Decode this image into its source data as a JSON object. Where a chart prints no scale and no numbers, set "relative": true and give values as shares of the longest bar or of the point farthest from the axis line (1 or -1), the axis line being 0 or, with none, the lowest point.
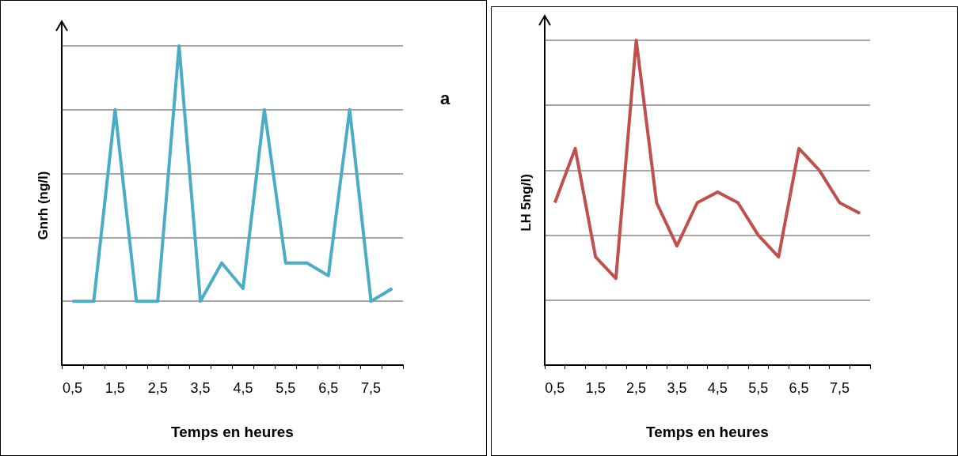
{
  "chart_data": [
    {
      "type": "line",
      "xlabel": "Temps en heures",
      "ylabel": "Gnrh (ng/l)",
      "relative": true,
      "grid": "y",
      "marker": "none",
      "line_style": "solid",
      "annotations": [
        "a"
      ],
      "categories": [
        "0,5",
        null,
        "1,5",
        null,
        "2,5",
        null,
        "3,5",
        null,
        "4,5",
        null,
        "5,5",
        null,
        "6,5",
        null,
        "7,5",
        null
      ],
      "series": [
        {
          "color": "#4bacc6",
          "values": [
            0.2,
            0.2,
            0.8,
            0.2,
            0.2,
            1,
            0.2,
            0.32,
            0.24,
            0.8,
            0.32,
            0.32,
            0.28,
            0.8,
            0.2,
            0.24
          ]
        }
      ]
    },
    {
      "type": "line",
      "xlabel": "Temps en heures",
      "ylabel": "LH 5ng/l)",
      "relative": true,
      "grid": "y",
      "marker": "none",
      "line_style": "solid",
      "categories": [
        "0,5",
        null,
        "1,5",
        null,
        "2,5",
        null,
        "3,5",
        null,
        "4,5",
        null,
        "5,5",
        null,
        "6,5",
        null,
        "7,5",
        null
      ],
      "series": [
        {
          "color": "#c0504d",
          "values": [
            0.5,
            0.667,
            0.333,
            0.267,
            1,
            0.5,
            0.367,
            0.5,
            0.533,
            0.5,
            0.4,
            0.333,
            0.667,
            0.6,
            0.5,
            0.467
          ]
        }
      ]
    }
  ]
}
